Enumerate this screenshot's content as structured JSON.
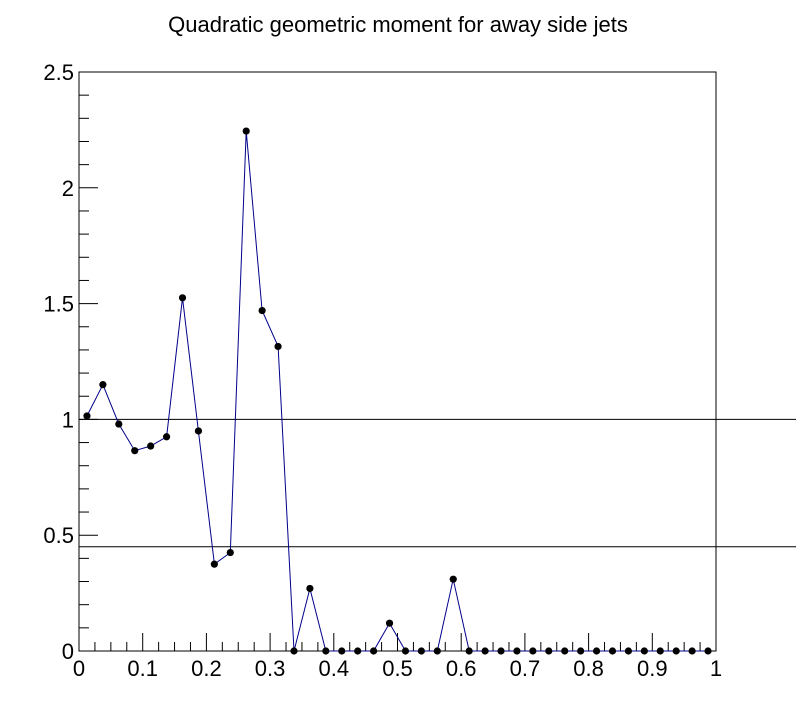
{
  "chart_data": {
    "type": "line",
    "title": "Quadratic geometric moment for away side jets",
    "xlabel": "",
    "ylabel": "",
    "xlim": [
      0,
      1
    ],
    "ylim": [
      0,
      2.5
    ],
    "x_ticks": [
      "0",
      "0.1",
      "0.2",
      "0.3",
      "0.4",
      "0.5",
      "0.6",
      "0.7",
      "0.8",
      "0.9",
      "1"
    ],
    "y_ticks": [
      "0",
      "0.5",
      "1",
      "1.5",
      "2",
      "2.5"
    ],
    "grid": false,
    "legend": "none",
    "reference_lines_y": [
      1.0,
      0.45
    ],
    "series": [
      {
        "color": "#00008b",
        "marker_color": "#000000",
        "x": [
          0.0125,
          0.0375,
          0.0625,
          0.0875,
          0.1125,
          0.1375,
          0.1625,
          0.1875,
          0.2125,
          0.2375,
          0.2625,
          0.2875,
          0.3125,
          0.3375,
          0.3625,
          0.3875,
          0.4125,
          0.4375,
          0.4625,
          0.4875,
          0.5125,
          0.5375,
          0.5625,
          0.5875,
          0.6125,
          0.6375,
          0.6625,
          0.6875,
          0.7125,
          0.7375,
          0.7625,
          0.7875,
          0.8125,
          0.8375,
          0.8625,
          0.8875,
          0.9125,
          0.9375,
          0.9625,
          0.9875
        ],
        "y": [
          1.015,
          1.15,
          0.98,
          0.865,
          0.885,
          0.925,
          1.525,
          0.95,
          0.375,
          0.425,
          2.245,
          1.47,
          1.315,
          0,
          0.27,
          0,
          0,
          0,
          0,
          0.12,
          0,
          0,
          0,
          0.31,
          0,
          0,
          0,
          0,
          0,
          0,
          0,
          0,
          0,
          0,
          0,
          0,
          0,
          0,
          0,
          0
        ]
      }
    ]
  }
}
